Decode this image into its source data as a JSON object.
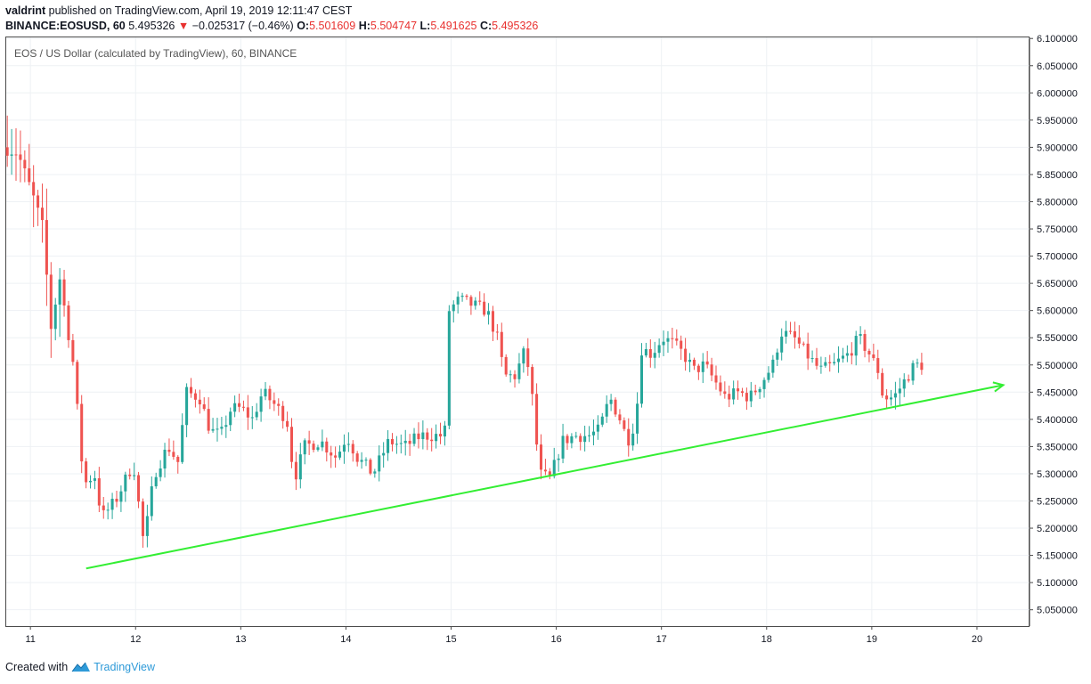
{
  "header": {
    "user": "valdrint",
    "published": "published on TradingView.com, April 19, 2019 12:11:47 CEST",
    "symbol": "BINANCE:EOSUSD, 60",
    "last": "5.495326",
    "change_arrow": "▼",
    "change": "−0.025317 (−0.46%)",
    "o_label": "O:",
    "o_value": "5.501609",
    "h_label": "H:",
    "h_value": "5.504747",
    "l_label": "L:",
    "l_value": "5.491625",
    "c_label": "C:",
    "c_value": "5.495326"
  },
  "legend": "EOS / US Dollar (calculated by TradingView), 60, BINANCE",
  "footer": {
    "created_with": "Created with",
    "brand": "TradingView"
  },
  "colors": {
    "up": "#26a69a",
    "down": "#ef5350",
    "trendline": "#33ee33",
    "grid": "#eef1f4",
    "text_down": "#e8312f",
    "brand": "#2e9ad8"
  },
  "chart_data": {
    "type": "candlestick",
    "title": "EOS / US Dollar (calculated by TradingView), 60, BINANCE",
    "xlabel": "",
    "ylabel": "",
    "x_unit": "day of April 2019",
    "x_ticks": [
      11,
      12,
      13,
      14,
      15,
      16,
      17,
      18,
      19,
      20
    ],
    "x_tick_labels": [
      "11",
      "12",
      "13",
      "14",
      "15",
      "16",
      "17",
      "18",
      "19",
      "20"
    ],
    "xlim": [
      10.77,
      20.5
    ],
    "ylim": [
      5.02,
      6.102
    ],
    "y_ticks": [
      6.1,
      6.05,
      6.0,
      5.95,
      5.9,
      5.85,
      5.8,
      5.75,
      5.7,
      5.65,
      5.6,
      5.55,
      5.5,
      5.45,
      5.4,
      5.35,
      5.3,
      5.25,
      5.2,
      5.15,
      5.1,
      5.05
    ],
    "y_tick_labels": [
      "6.100000",
      "6.050000",
      "6.000000",
      "5.950000",
      "5.900000",
      "5.850000",
      "5.800000",
      "5.750000",
      "5.700000",
      "5.650000",
      "5.600000",
      "5.550000",
      "5.500000",
      "5.450000",
      "5.400000",
      "5.350000",
      "5.300000",
      "5.250000",
      "5.200000",
      "5.150000",
      "5.100000",
      "5.050000"
    ],
    "grid": true,
    "anchor_points": [
      [
        10.78,
        5.9
      ],
      [
        10.92,
        5.89
      ],
      [
        11.05,
        5.82
      ],
      [
        11.18,
        5.74
      ],
      [
        11.22,
        5.55
      ],
      [
        11.32,
        5.66
      ],
      [
        11.45,
        5.5
      ],
      [
        11.55,
        5.28
      ],
      [
        11.65,
        5.3
      ],
      [
        11.72,
        5.22
      ],
      [
        11.85,
        5.25
      ],
      [
        12.02,
        5.32
      ],
      [
        12.12,
        5.17
      ],
      [
        12.22,
        5.3
      ],
      [
        12.35,
        5.35
      ],
      [
        12.45,
        5.32
      ],
      [
        12.52,
        5.45
      ],
      [
        12.65,
        5.44
      ],
      [
        12.75,
        5.38
      ],
      [
        12.85,
        5.37
      ],
      [
        12.95,
        5.42
      ],
      [
        13.05,
        5.42
      ],
      [
        13.15,
        5.4
      ],
      [
        13.25,
        5.45
      ],
      [
        13.35,
        5.43
      ],
      [
        13.48,
        5.4
      ],
      [
        13.55,
        5.29
      ],
      [
        13.65,
        5.35
      ],
      [
        13.8,
        5.36
      ],
      [
        13.95,
        5.33
      ],
      [
        14.05,
        5.37
      ],
      [
        14.15,
        5.33
      ],
      [
        14.3,
        5.3
      ],
      [
        14.45,
        5.36
      ],
      [
        14.6,
        5.35
      ],
      [
        14.75,
        5.37
      ],
      [
        14.9,
        5.37
      ],
      [
        14.98,
        5.37
      ],
      [
        15.02,
        5.6
      ],
      [
        15.12,
        5.62
      ],
      [
        15.25,
        5.61
      ],
      [
        15.38,
        5.6
      ],
      [
        15.48,
        5.55
      ],
      [
        15.55,
        5.48
      ],
      [
        15.65,
        5.48
      ],
      [
        15.75,
        5.53
      ],
      [
        15.82,
        5.43
      ],
      [
        15.88,
        5.3
      ],
      [
        15.98,
        5.29
      ],
      [
        16.1,
        5.36
      ],
      [
        16.22,
        5.37
      ],
      [
        16.35,
        5.37
      ],
      [
        16.45,
        5.38
      ],
      [
        16.55,
        5.44
      ],
      [
        16.65,
        5.4
      ],
      [
        16.72,
        5.36
      ],
      [
        16.8,
        5.4
      ],
      [
        16.85,
        5.53
      ],
      [
        16.95,
        5.52
      ],
      [
        17.05,
        5.55
      ],
      [
        17.15,
        5.54
      ],
      [
        17.25,
        5.52
      ],
      [
        17.35,
        5.49
      ],
      [
        17.45,
        5.5
      ],
      [
        17.55,
        5.47
      ],
      [
        17.65,
        5.44
      ],
      [
        17.78,
        5.45
      ],
      [
        17.88,
        5.44
      ],
      [
        18.0,
        5.47
      ],
      [
        18.1,
        5.5
      ],
      [
        18.18,
        5.56
      ],
      [
        18.3,
        5.55
      ],
      [
        18.42,
        5.52
      ],
      [
        18.55,
        5.49
      ],
      [
        18.68,
        5.5
      ],
      [
        18.82,
        5.52
      ],
      [
        18.92,
        5.55
      ],
      [
        19.02,
        5.52
      ],
      [
        19.1,
        5.49
      ],
      [
        19.15,
        5.44
      ],
      [
        19.25,
        5.44
      ],
      [
        19.35,
        5.47
      ],
      [
        19.45,
        5.5
      ],
      [
        19.5,
        5.5
      ]
    ],
    "candle_count": 210,
    "first_candle_x": 10.78,
    "candle_step": 0.0416,
    "trendline": {
      "x1": 11.53,
      "y1": 5.126,
      "x2": 20.25,
      "y2": 5.463,
      "arrow_end": true
    }
  }
}
